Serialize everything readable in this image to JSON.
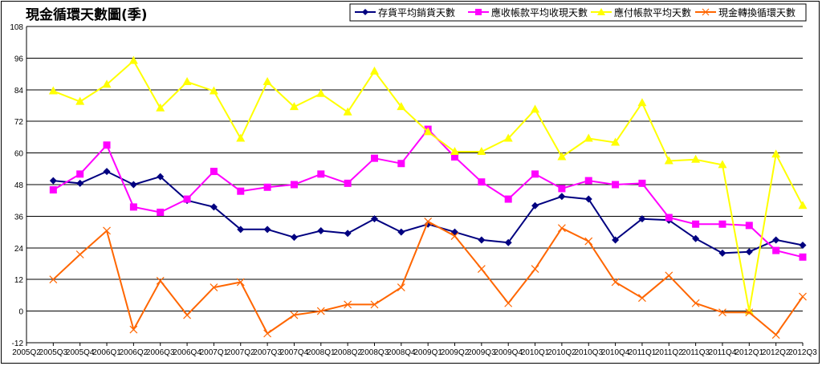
{
  "chart_data": {
    "type": "line",
    "title": "現金循環天數圖(季)",
    "xlabel": "",
    "ylabel": "",
    "ylim": [
      -12,
      108
    ],
    "yticks": [
      -12,
      0,
      12,
      24,
      36,
      48,
      60,
      72,
      84,
      96,
      108
    ],
    "grid": true,
    "legend_position": "top-right",
    "categories": [
      "2005Q2",
      "2005Q3",
      "2005Q4",
      "2006Q1",
      "2006Q2",
      "2006Q3",
      "2006Q4",
      "2007Q1",
      "2007Q2",
      "2007Q3",
      "2007Q4",
      "2008Q1",
      "2008Q2",
      "2008Q3",
      "2008Q4",
      "2009Q1",
      "2009Q2",
      "2009Q3",
      "2009Q4",
      "2010Q1",
      "2010Q2",
      "2010Q3",
      "2010Q4",
      "2011Q1",
      "2011Q2",
      "2011Q3",
      "2011Q4",
      "2012Q1",
      "2012Q2",
      "2012Q3"
    ],
    "series": [
      {
        "name": "存貨平均銷貨天數",
        "color": "#000080",
        "marker": "diamond",
        "values": [
          null,
          49.5,
          48.5,
          53,
          48,
          51,
          42,
          39.5,
          31,
          31,
          28,
          30.5,
          29.5,
          35,
          30,
          33,
          30,
          27,
          26,
          40,
          43.5,
          42.5,
          27,
          35,
          34.5,
          27.5,
          22,
          22.5,
          27,
          25
        ]
      },
      {
        "name": "應收帳款平均收現天數",
        "color": "#FF00FF",
        "marker": "square",
        "values": [
          null,
          46,
          52,
          63,
          39.5,
          37.5,
          42.5,
          53,
          45.5,
          47,
          48,
          52,
          48.5,
          58,
          56,
          69,
          58.5,
          49,
          42.5,
          52,
          46.5,
          49.5,
          48,
          48.5,
          35.5,
          33,
          33,
          32.5,
          23,
          20.5
        ]
      },
      {
        "name": "應付帳款平均天數",
        "color": "#FFFF00",
        "marker": "triangle",
        "values": [
          null,
          83.5,
          79.5,
          86,
          95,
          77,
          87,
          83.5,
          65.5,
          87,
          77.5,
          82.5,
          75.5,
          91,
          77.5,
          68,
          60.5,
          60.5,
          65.5,
          76.5,
          58.5,
          65.5,
          64,
          79,
          57,
          57.5,
          55.5,
          0,
          59.5,
          40
        ]
      },
      {
        "name": "現金轉換循環天數",
        "color": "#FF6600",
        "marker": "x",
        "values": [
          null,
          12,
          21.5,
          30.5,
          -7,
          11.5,
          -1.5,
          9,
          11,
          -8.5,
          -1.5,
          0,
          2.5,
          2.5,
          9,
          34,
          28.5,
          16,
          3,
          16,
          31.5,
          26.5,
          11,
          5,
          13.5,
          3,
          -0.5,
          -0.5,
          -9,
          5.5
        ]
      }
    ]
  }
}
